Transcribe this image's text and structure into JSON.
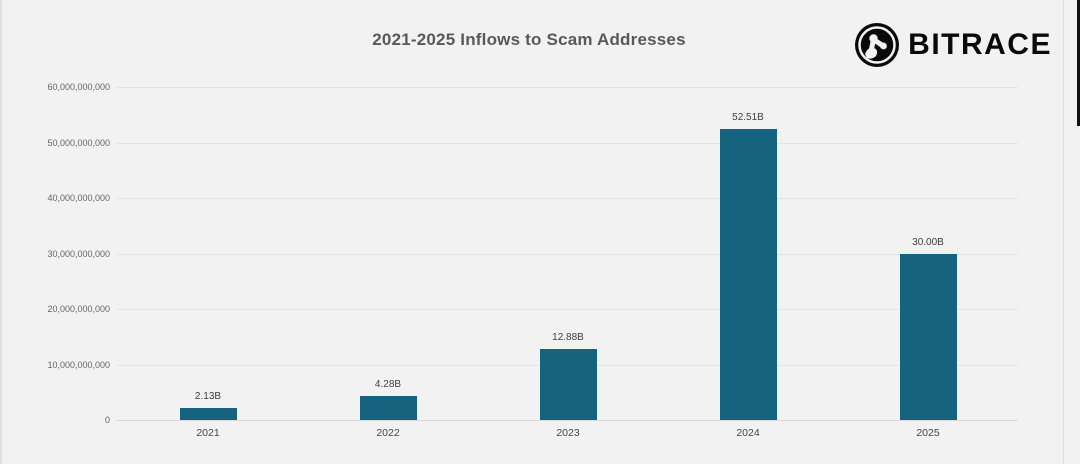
{
  "title": "2021-2025 Inflows to Scam Addresses",
  "logo": {
    "icon": "bitrace-globe-icon",
    "text": "BITRACE"
  },
  "chart_data": {
    "type": "bar",
    "title": "2021-2025 Inflows to Scam Addresses",
    "categories": [
      "2021",
      "2022",
      "2023",
      "2024",
      "2025"
    ],
    "values": [
      2130000000,
      4280000000,
      12880000000,
      52510000000,
      30000000000
    ],
    "value_labels": [
      "2.13B",
      "4.28B",
      "12.88B",
      "52.51B",
      "30.00B"
    ],
    "xlabel": "",
    "ylabel": "",
    "ylim": [
      0,
      60000000000
    ],
    "y_tick_values": [
      0,
      10000000000,
      20000000000,
      30000000000,
      40000000000,
      50000000000,
      60000000000
    ],
    "y_tick_labels": [
      "0",
      "10,000,000,000",
      "20,000,000,000",
      "30,000,000,000",
      "40,000,000,000",
      "50,000,000,000",
      "60,000,000,000"
    ],
    "grid": true,
    "legend_position": "none",
    "bar_color": "#166380"
  },
  "colors": {
    "background": "#f2f2f2",
    "bar": "#166380",
    "title_text": "#595959",
    "axis_text": "#666666",
    "gridline": "#e4e4e4",
    "logo_text": "#0a0a0a"
  }
}
